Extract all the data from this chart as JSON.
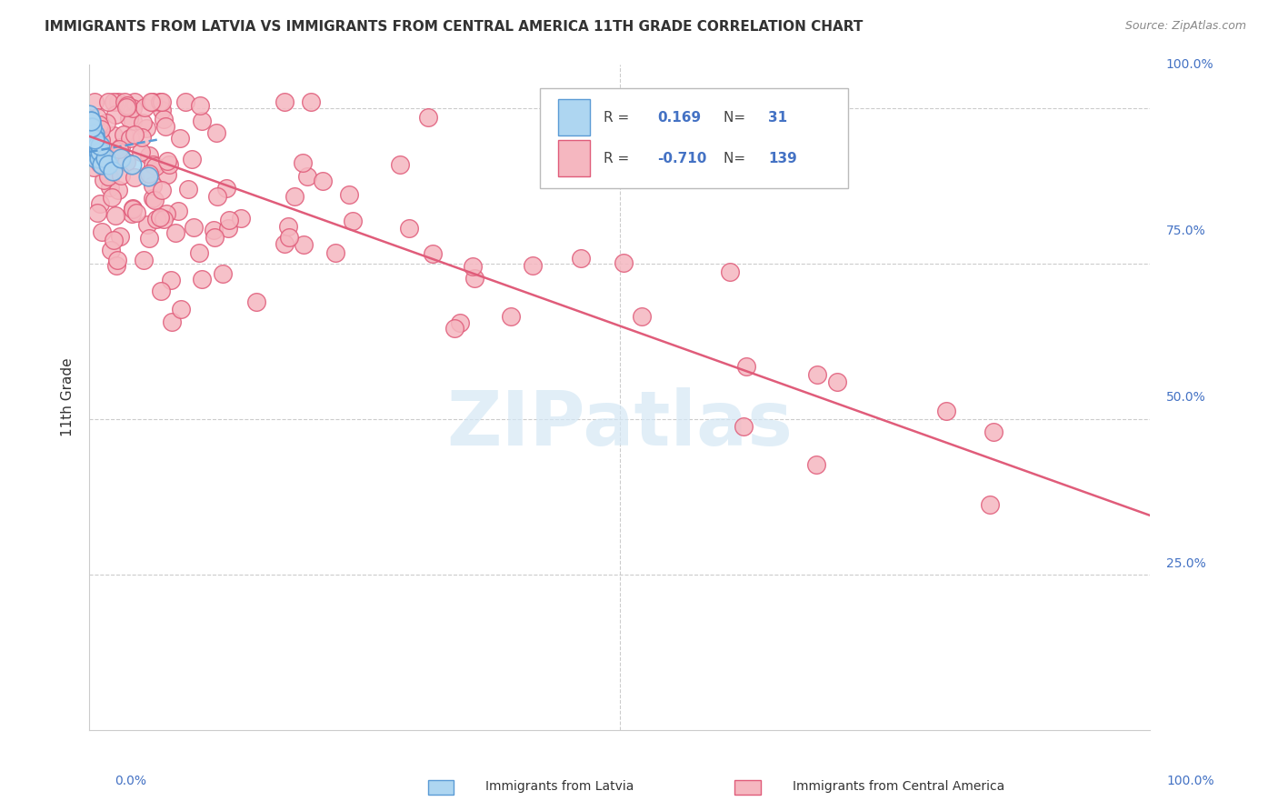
{
  "title": "IMMIGRANTS FROM LATVIA VS IMMIGRANTS FROM CENTRAL AMERICA 11TH GRADE CORRELATION CHART",
  "source": "Source: ZipAtlas.com",
  "ylabel": "11th Grade",
  "latvia_R": 0.169,
  "latvia_N": 31,
  "central_R": -0.71,
  "central_N": 139,
  "latvia_color": "#aed6f1",
  "latvia_edge_color": "#5b9bd5",
  "central_color": "#f5b7c0",
  "central_edge_color": "#e05c7a",
  "latvia_line_color": "#5b9bd5",
  "central_line_color": "#e05c7a",
  "watermark_color": "#d5e8f5",
  "grid_color": "#cccccc",
  "axis_label_color": "#4472c4",
  "title_color": "#333333",
  "source_color": "#888888"
}
